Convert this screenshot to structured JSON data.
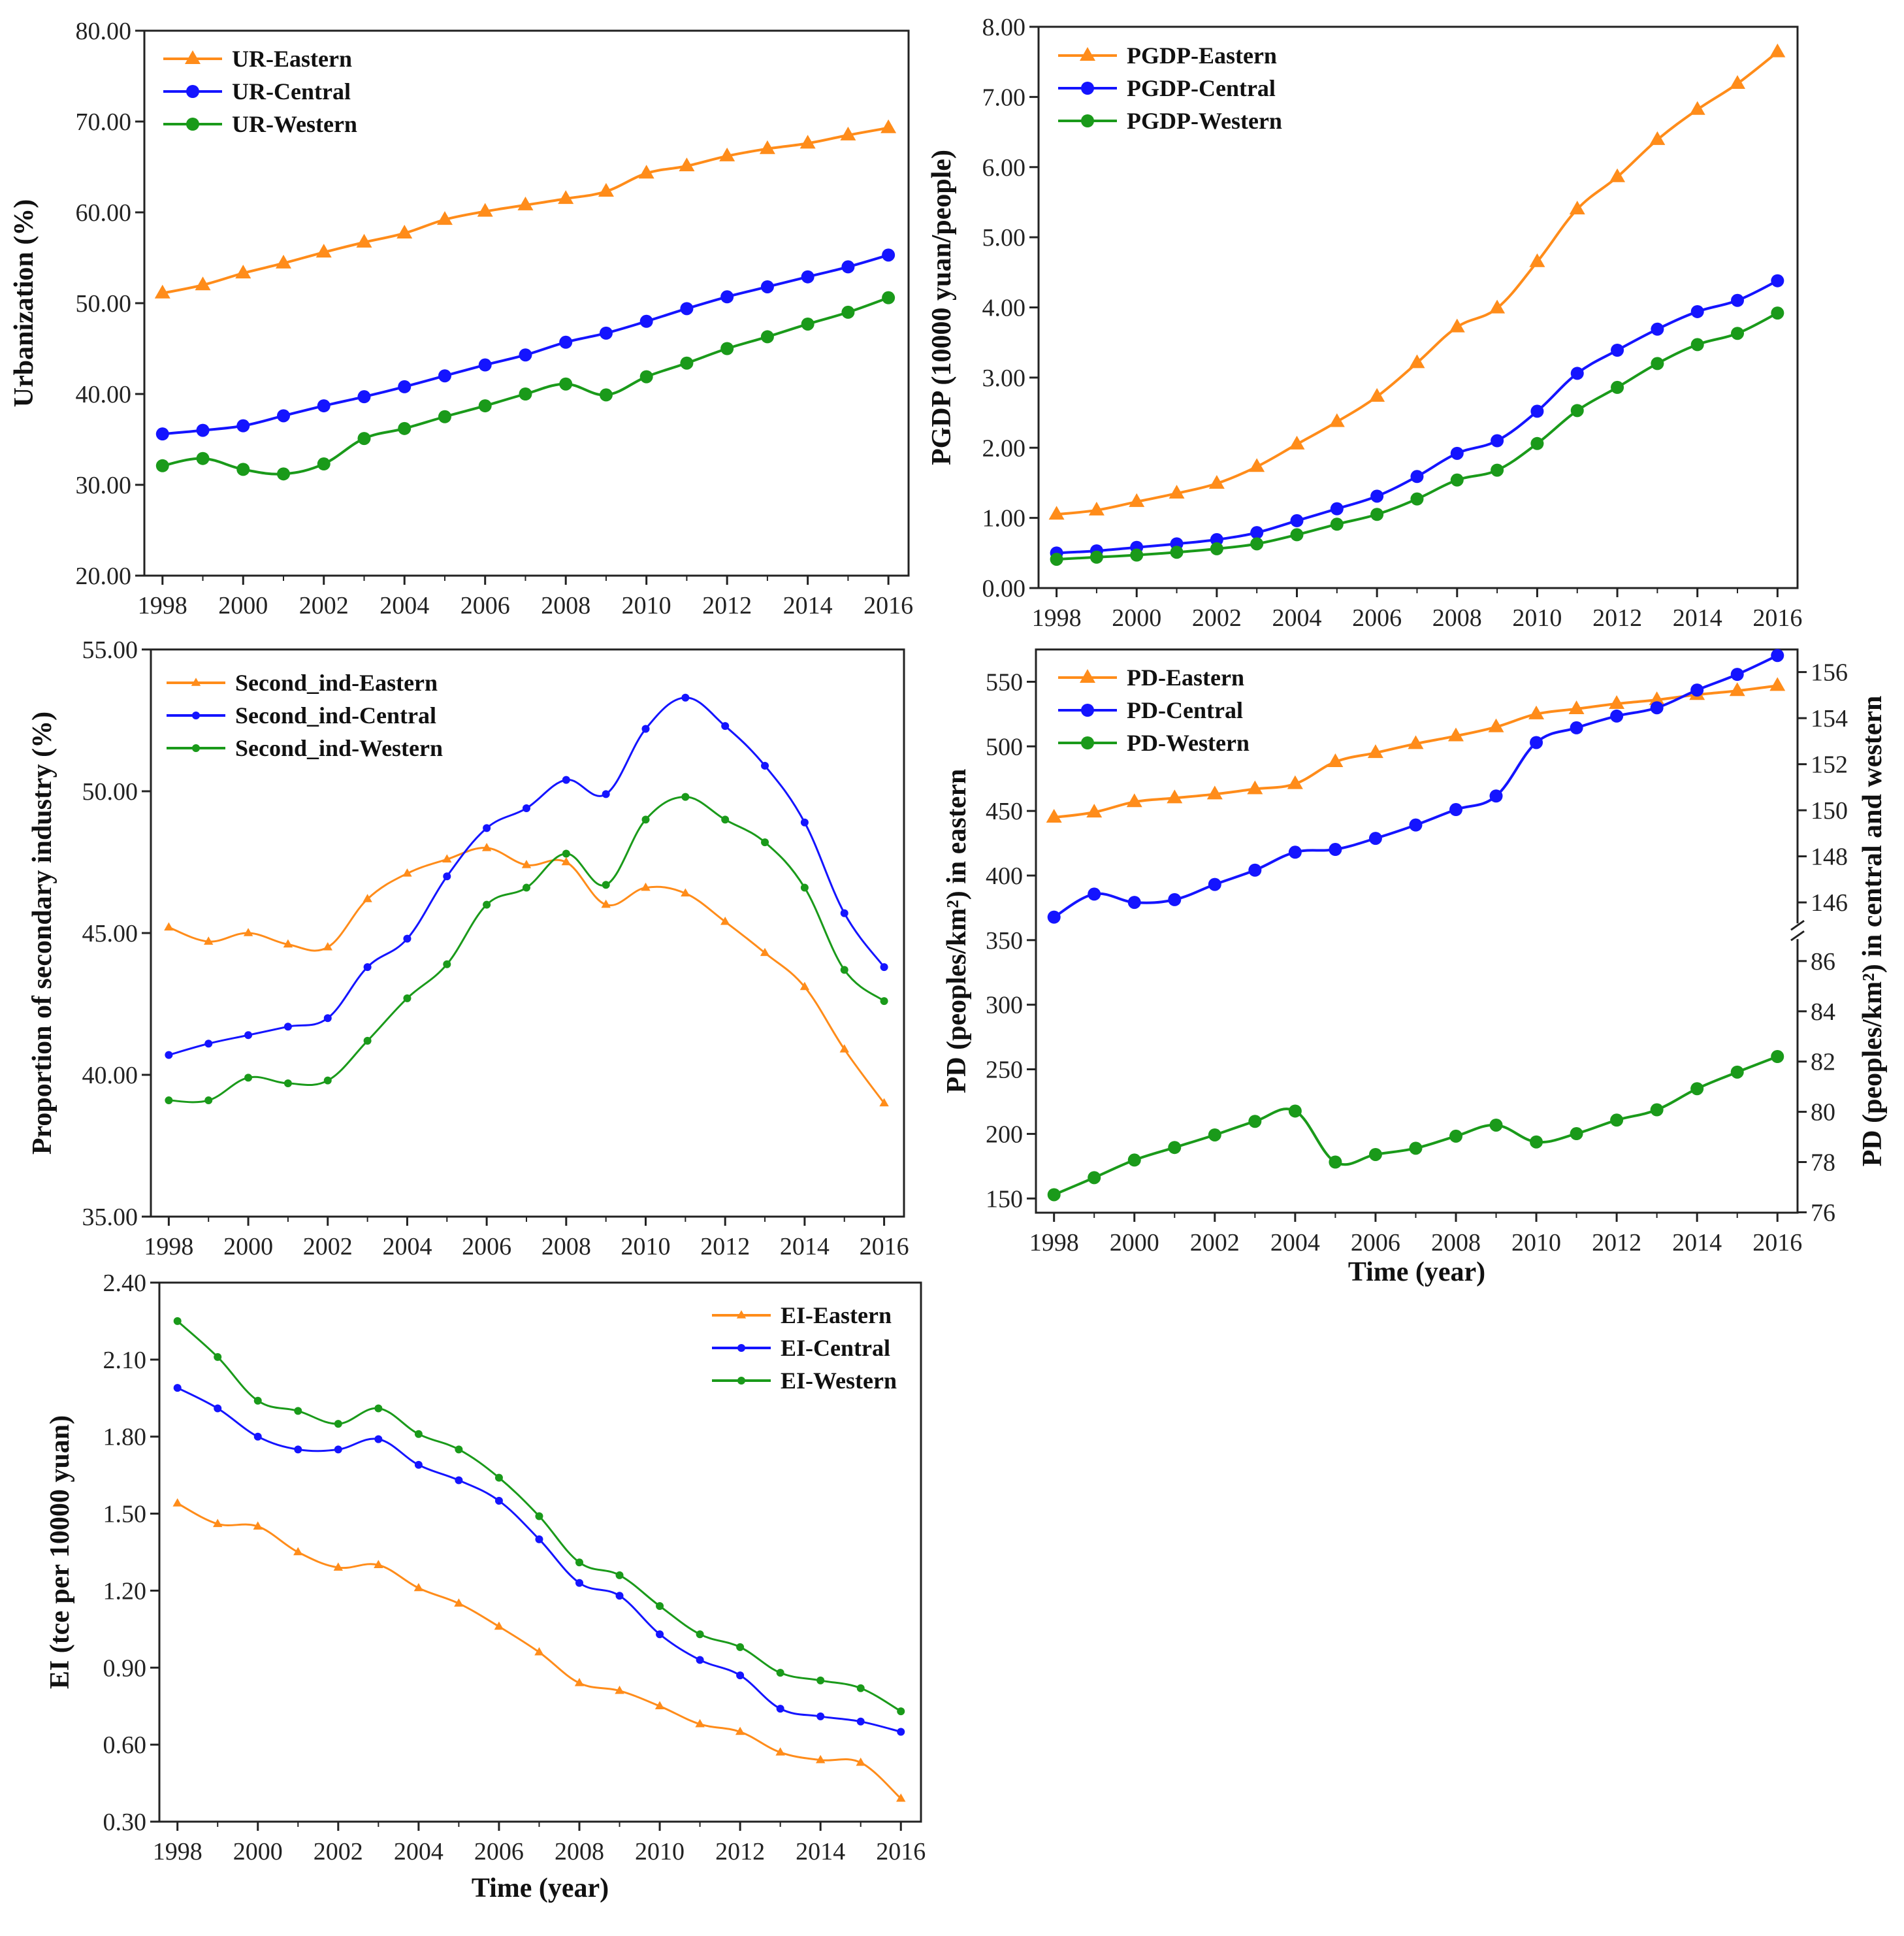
{
  "chart_data": [
    {
      "id": "ur",
      "type": "line",
      "title": "",
      "xlabel": "",
      "ylabel": "Urbanization (%)",
      "x": [
        1998,
        1999,
        2000,
        2001,
        2002,
        2003,
        2004,
        2005,
        2006,
        2007,
        2008,
        2009,
        2010,
        2011,
        2012,
        2013,
        2014,
        2015,
        2016
      ],
      "xticks": [
        "1998",
        "2000",
        "2002",
        "2004",
        "2006",
        "2008",
        "2010",
        "2012",
        "2014",
        "2016"
      ],
      "ylim": [
        20,
        80
      ],
      "yticks": [
        "20.00",
        "30.00",
        "40.00",
        "50.00",
        "60.00",
        "70.00",
        "80.00"
      ],
      "legend": "top-left",
      "series": [
        {
          "name": "UR-Eastern",
          "color": "#ff8c1a",
          "marker": "triangle",
          "values": [
            51.1,
            52.0,
            53.3,
            54.4,
            55.6,
            56.7,
            57.7,
            59.2,
            60.1,
            60.8,
            61.5,
            62.3,
            64.3,
            65.1,
            66.2,
            67.0,
            67.6,
            68.5,
            69.3
          ]
        },
        {
          "name": "UR-Central",
          "color": "#1414ff",
          "marker": "circle",
          "values": [
            35.6,
            36.0,
            36.5,
            37.6,
            38.7,
            39.7,
            40.8,
            42.0,
            43.2,
            44.3,
            45.7,
            46.7,
            48.0,
            49.4,
            50.7,
            51.8,
            52.9,
            54.0,
            55.3
          ]
        },
        {
          "name": "UR-Western",
          "color": "#1a9a1a",
          "marker": "circle",
          "values": [
            32.1,
            32.9,
            31.7,
            31.2,
            32.3,
            35.1,
            36.2,
            37.5,
            38.7,
            40.0,
            41.1,
            39.9,
            41.9,
            43.4,
            45.0,
            46.3,
            47.7,
            49.0,
            50.6
          ]
        }
      ]
    },
    {
      "id": "pgdp",
      "type": "line",
      "title": "",
      "xlabel": "",
      "ylabel": "PGDP (10000 yuan/people)",
      "x": [
        1998,
        1999,
        2000,
        2001,
        2002,
        2003,
        2004,
        2005,
        2006,
        2007,
        2008,
        2009,
        2010,
        2011,
        2012,
        2013,
        2014,
        2015,
        2016
      ],
      "xticks": [
        "1998",
        "2000",
        "2002",
        "2004",
        "2006",
        "2008",
        "2010",
        "2012",
        "2014",
        "2016"
      ],
      "ylim": [
        0,
        8
      ],
      "yticks": [
        "0.00",
        "1.00",
        "2.00",
        "3.00",
        "4.00",
        "5.00",
        "6.00",
        "7.00",
        "8.00"
      ],
      "legend": "top-left",
      "series": [
        {
          "name": "PGDP-Eastern",
          "color": "#ff8c1a",
          "marker": "triangle",
          "values": [
            1.05,
            1.11,
            1.23,
            1.35,
            1.49,
            1.73,
            2.05,
            2.37,
            2.73,
            3.21,
            3.72,
            3.99,
            4.65,
            5.4,
            5.86,
            6.39,
            6.82,
            7.19,
            7.64
          ]
        },
        {
          "name": "PGDP-Central",
          "color": "#1414ff",
          "marker": "circle",
          "values": [
            0.5,
            0.53,
            0.58,
            0.63,
            0.69,
            0.79,
            0.96,
            1.13,
            1.31,
            1.59,
            1.92,
            2.1,
            2.52,
            3.06,
            3.39,
            3.69,
            3.94,
            4.1,
            4.38
          ]
        },
        {
          "name": "PGDP-Western",
          "color": "#1a9a1a",
          "marker": "circle",
          "values": [
            0.41,
            0.44,
            0.47,
            0.51,
            0.56,
            0.63,
            0.76,
            0.91,
            1.05,
            1.27,
            1.54,
            1.68,
            2.06,
            2.53,
            2.86,
            3.2,
            3.47,
            3.63,
            3.92
          ]
        }
      ]
    },
    {
      "id": "second",
      "type": "line",
      "title": "",
      "xlabel": "",
      "ylabel": "Proportion of secondary industry (%)",
      "x": [
        1998,
        1999,
        2000,
        2001,
        2002,
        2003,
        2004,
        2005,
        2006,
        2007,
        2008,
        2009,
        2010,
        2011,
        2012,
        2013,
        2014,
        2015,
        2016
      ],
      "xticks": [
        "1998",
        "2000",
        "2002",
        "2004",
        "2006",
        "2008",
        "2010",
        "2012",
        "2014",
        "2016"
      ],
      "ylim": [
        35,
        55
      ],
      "yticks": [
        "35.00",
        "40.00",
        "45.00",
        "50.00",
        "55.00"
      ],
      "legend": "top-left",
      "series": [
        {
          "name": "Second_ind-Eastern",
          "color": "#ff8c1a",
          "marker": "smalltriangle",
          "values": [
            45.2,
            44.7,
            45.0,
            44.6,
            44.5,
            46.2,
            47.1,
            47.6,
            48.0,
            47.4,
            47.5,
            46.0,
            46.6,
            46.4,
            45.4,
            44.3,
            43.1,
            40.9,
            39.0
          ]
        },
        {
          "name": "Second_ind-Central",
          "color": "#1414ff",
          "marker": "smallcircle",
          "values": [
            40.7,
            41.1,
            41.4,
            41.7,
            42.0,
            43.8,
            44.8,
            47.0,
            48.7,
            49.4,
            50.4,
            49.9,
            52.2,
            53.3,
            52.3,
            50.9,
            48.9,
            45.7,
            43.8
          ]
        },
        {
          "name": "Second_ind-Western",
          "color": "#1a9a1a",
          "marker": "smallcircle",
          "values": [
            39.1,
            39.1,
            39.9,
            39.7,
            39.8,
            41.2,
            42.7,
            43.9,
            46.0,
            46.6,
            47.8,
            46.7,
            49.0,
            49.8,
            49.0,
            48.2,
            46.6,
            43.7,
            42.6
          ]
        }
      ]
    },
    {
      "id": "pd",
      "type": "line",
      "title": "",
      "xlabel": "Time (year)",
      "ylabel": "PD (peoples/km²) in eastern",
      "ylabel_right": "PD (peoples/km²) in central and western",
      "x": [
        1998,
        1999,
        2000,
        2001,
        2002,
        2003,
        2004,
        2005,
        2006,
        2007,
        2008,
        2009,
        2010,
        2011,
        2012,
        2013,
        2014,
        2015,
        2016
      ],
      "xticks": [
        "1998",
        "2000",
        "2002",
        "2004",
        "2006",
        "2008",
        "2010",
        "2012",
        "2014",
        "2016"
      ],
      "ylim": [
        139,
        575
      ],
      "yticks": [
        "150",
        "200",
        "250",
        "300",
        "350",
        "400",
        "450",
        "500",
        "550"
      ],
      "yticks_right_upper": [
        "146",
        "148",
        "150",
        "152",
        "154",
        "156"
      ],
      "yticks_right_lower": [
        "76",
        "78",
        "80",
        "82",
        "84",
        "86"
      ],
      "right_axis_break": [
        86.5,
        145.5
      ],
      "legend": "top-left",
      "series": [
        {
          "name": "PD-Eastern",
          "axis": "left",
          "color": "#ff8c1a",
          "marker": "triangle",
          "values": [
            445,
            449,
            457,
            460,
            463,
            467,
            471,
            488,
            495,
            502,
            508,
            515,
            525,
            529,
            533,
            536,
            540,
            543,
            547
          ]
        },
        {
          "name": "PD-Central",
          "axis": "right",
          "color": "#1414ff",
          "marker": "circle",
          "values": [
            145.36,
            146.36,
            146.0,
            146.12,
            146.78,
            147.4,
            148.18,
            148.3,
            148.78,
            149.36,
            150.03,
            150.62,
            152.94,
            153.58,
            154.09,
            154.45,
            155.22,
            155.9,
            156.72
          ]
        },
        {
          "name": "PD-Western",
          "axis": "right",
          "color": "#1a9a1a",
          "marker": "circle",
          "values": [
            76.7,
            77.38,
            78.08,
            78.58,
            79.08,
            79.62,
            80.03,
            78.0,
            78.3,
            78.55,
            79.03,
            79.47,
            78.8,
            79.13,
            79.67,
            80.08,
            80.92,
            81.58,
            82.2
          ]
        }
      ]
    },
    {
      "id": "ei",
      "type": "line",
      "title": "",
      "xlabel": "Time (year)",
      "ylabel": "EI (tce per 10000 yuan)",
      "x": [
        1998,
        1999,
        2000,
        2001,
        2002,
        2003,
        2004,
        2005,
        2006,
        2007,
        2008,
        2009,
        2010,
        2011,
        2012,
        2013,
        2014,
        2015,
        2016
      ],
      "xticks": [
        "1998",
        "2000",
        "2002",
        "2004",
        "2006",
        "2008",
        "2010",
        "2012",
        "2014",
        "2016"
      ],
      "ylim": [
        0.3,
        2.4
      ],
      "yticks": [
        "0.30",
        "0.60",
        "0.90",
        "1.20",
        "1.50",
        "1.80",
        "2.10",
        "2.40"
      ],
      "legend": "top-right",
      "series": [
        {
          "name": "EI-Eastern",
          "color": "#ff8c1a",
          "marker": "smalltriangle",
          "values": [
            1.54,
            1.46,
            1.45,
            1.35,
            1.29,
            1.3,
            1.21,
            1.15,
            1.06,
            0.96,
            0.84,
            0.81,
            0.75,
            0.68,
            0.65,
            0.57,
            0.54,
            0.53,
            0.39
          ]
        },
        {
          "name": "EI-Central",
          "color": "#1414ff",
          "marker": "smallcircle",
          "values": [
            1.99,
            1.91,
            1.8,
            1.75,
            1.75,
            1.79,
            1.69,
            1.63,
            1.55,
            1.4,
            1.23,
            1.18,
            1.03,
            0.93,
            0.87,
            0.74,
            0.71,
            0.69,
            0.65
          ]
        },
        {
          "name": "EI-Western",
          "color": "#1a9a1a",
          "marker": "smallcircle",
          "values": [
            2.25,
            2.11,
            1.94,
            1.9,
            1.85,
            1.91,
            1.81,
            1.75,
            1.64,
            1.49,
            1.31,
            1.26,
            1.14,
            1.03,
            0.98,
            0.88,
            0.85,
            0.82,
            0.73
          ]
        }
      ]
    }
  ]
}
